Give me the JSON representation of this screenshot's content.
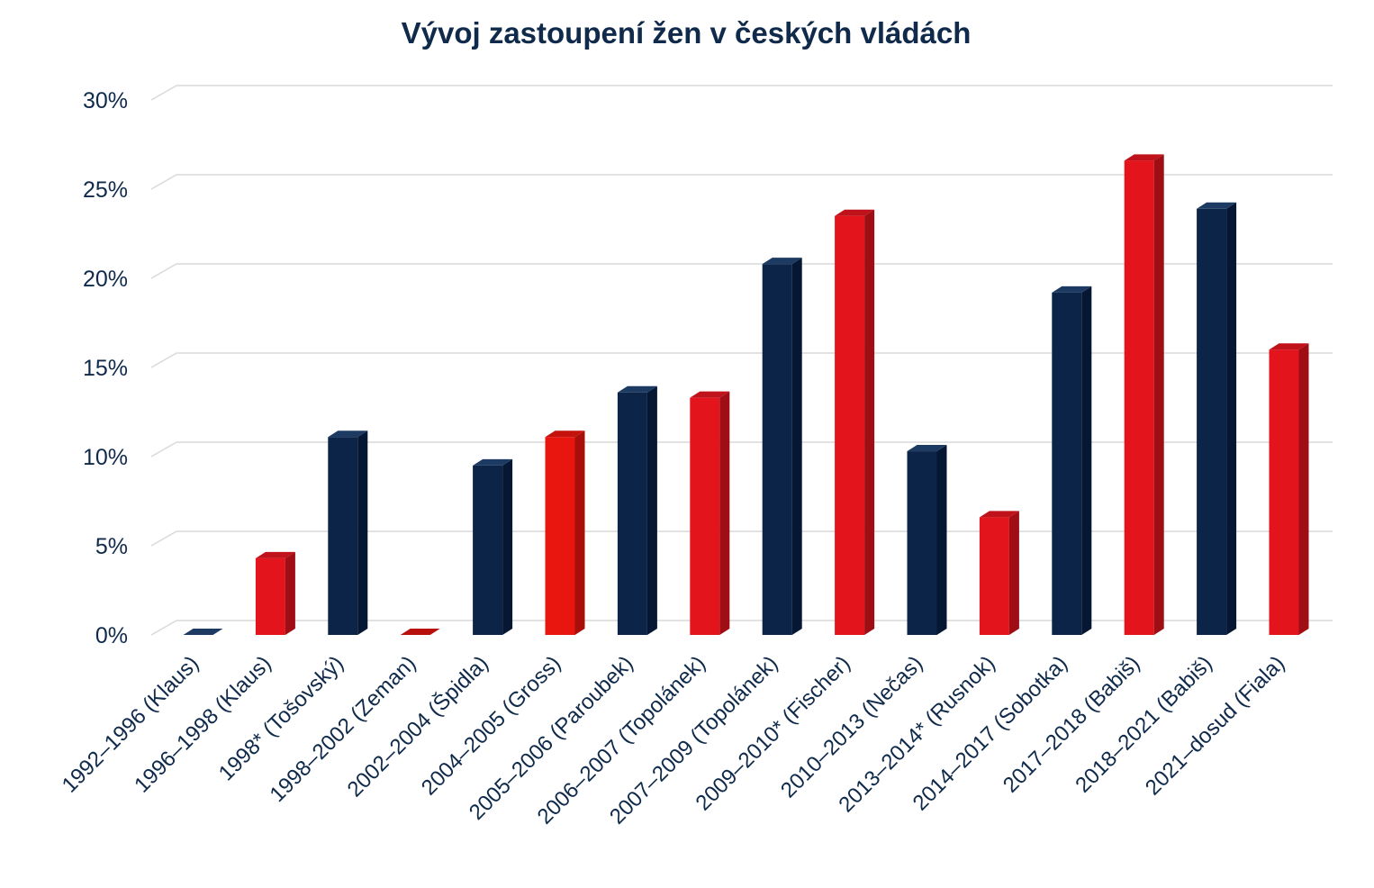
{
  "chart_data": {
    "type": "bar",
    "title": "Vývoj zastoupení žen v českých vládách",
    "xlabel": "",
    "ylabel": "",
    "ylim": [
      0,
      30
    ],
    "yticks": [
      0,
      5,
      10,
      15,
      20,
      25,
      30
    ],
    "ytick_labels": [
      "0%",
      "5%",
      "10%",
      "15%",
      "20%",
      "25%",
      "30%"
    ],
    "grid": true,
    "legend": "none",
    "categories": [
      "1992–1996 (Klaus)",
      "1996–1998 (Klaus)",
      "1998* (Tošovský)",
      "1998–2002 (Zeman)",
      "2002–2004 (Špidla)",
      "2004–2005 (Gross)",
      "2005–2006 (Paroubek)",
      "2006–2007 (Topolánek)",
      "2007–2009 (Topolánek)",
      "2009–2010* (Fischer)",
      "2010–2013 (Nečas)",
      "2013–2014* (Rusnok)",
      "2014–2017 (Sobotka)",
      "2017–2018 (Babiš)",
      "2018–2021 (Babiš)",
      "2021–dosud (Fiala)"
    ],
    "values": [
      0,
      4.3,
      11.1,
      0,
      9.5,
      11.1,
      13.6,
      13.3,
      20.8,
      23.5,
      10.3,
      6.6,
      19.2,
      26.6,
      23.9,
      16.0
    ],
    "bar_colors": [
      "#0b2447",
      "#e3141c",
      "#0b2447",
      "#d9120f",
      "#0b2447",
      "#e8160f",
      "#0b2447",
      "#e3141c",
      "#0b2447",
      "#e3141c",
      "#0b2447",
      "#e3141c",
      "#0b2447",
      "#e3141c",
      "#0b2447",
      "#e3141c"
    ],
    "side_colors": {
      "#0b2447": "#061733",
      "#e3141c": "#9e0e14",
      "#d9120f": "#a00e0a",
      "#e8160f": "#a80f0a"
    },
    "top_colors": {
      "#0b2447": "#1d3a63",
      "#e3141c": "#c0121a",
      "#d9120f": "#b8100c",
      "#e8160f": "#c4120c"
    }
  }
}
